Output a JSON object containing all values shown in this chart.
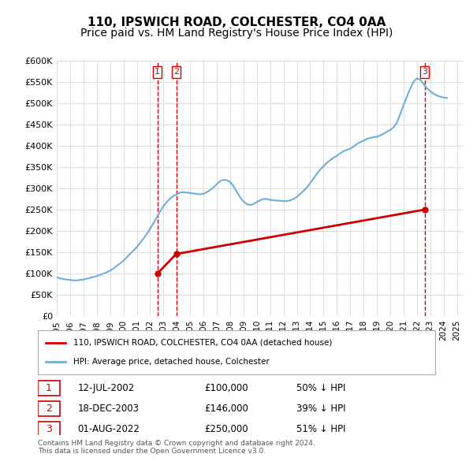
{
  "title": "110, IPSWICH ROAD, COLCHESTER, CO4 0AA",
  "subtitle": "Price paid vs. HM Land Registry's House Price Index (HPI)",
  "title_fontsize": 11,
  "subtitle_fontsize": 10,
  "hpi_color": "#6dafd7",
  "price_color": "#cc0000",
  "vline_color": "#cc0000",
  "ylabel_values": [
    "£0",
    "£50K",
    "£100K",
    "£150K",
    "£200K",
    "£250K",
    "£300K",
    "£350K",
    "£400K",
    "£450K",
    "£500K",
    "£550K",
    "£600K"
  ],
  "ylim": [
    0,
    600000
  ],
  "xlim": [
    1995.0,
    2025.5
  ],
  "hpi_years": [
    1995.0,
    1995.25,
    1995.5,
    1995.75,
    1996.0,
    1996.25,
    1996.5,
    1996.75,
    1997.0,
    1997.25,
    1997.5,
    1997.75,
    1998.0,
    1998.25,
    1998.5,
    1998.75,
    1999.0,
    1999.25,
    1999.5,
    1999.75,
    2000.0,
    2000.25,
    2000.5,
    2000.75,
    2001.0,
    2001.25,
    2001.5,
    2001.75,
    2002.0,
    2002.25,
    2002.5,
    2002.75,
    2003.0,
    2003.25,
    2003.5,
    2003.75,
    2004.0,
    2004.25,
    2004.5,
    2004.75,
    2005.0,
    2005.25,
    2005.5,
    2005.75,
    2006.0,
    2006.25,
    2006.5,
    2006.75,
    2007.0,
    2007.25,
    2007.5,
    2007.75,
    2008.0,
    2008.25,
    2008.5,
    2008.75,
    2009.0,
    2009.25,
    2009.5,
    2009.75,
    2010.0,
    2010.25,
    2010.5,
    2010.75,
    2011.0,
    2011.25,
    2011.5,
    2011.75,
    2012.0,
    2012.25,
    2012.5,
    2012.75,
    2013.0,
    2013.25,
    2013.5,
    2013.75,
    2014.0,
    2014.25,
    2014.5,
    2014.75,
    2015.0,
    2015.25,
    2015.5,
    2015.75,
    2016.0,
    2016.25,
    2016.5,
    2016.75,
    2017.0,
    2017.25,
    2017.5,
    2017.75,
    2018.0,
    2018.25,
    2018.5,
    2018.75,
    2019.0,
    2019.25,
    2019.5,
    2019.75,
    2020.0,
    2020.25,
    2020.5,
    2020.75,
    2021.0,
    2021.25,
    2021.5,
    2021.75,
    2022.0,
    2022.25,
    2022.5,
    2022.75,
    2023.0,
    2023.25,
    2023.5,
    2023.75,
    2024.0,
    2024.25
  ],
  "hpi_values": [
    91000,
    89000,
    87000,
    86000,
    85000,
    84000,
    84000,
    85000,
    86000,
    88000,
    90000,
    92000,
    94000,
    97000,
    100000,
    103000,
    107000,
    112000,
    118000,
    124000,
    130000,
    138000,
    146000,
    154000,
    162000,
    172000,
    182000,
    193000,
    205000,
    218000,
    232000,
    246000,
    258000,
    268000,
    276000,
    282000,
    286000,
    290000,
    291000,
    290000,
    289000,
    288000,
    287000,
    286000,
    287000,
    291000,
    296000,
    302000,
    310000,
    317000,
    320000,
    319000,
    315000,
    305000,
    292000,
    279000,
    269000,
    263000,
    261000,
    263000,
    268000,
    272000,
    275000,
    275000,
    273000,
    272000,
    271000,
    271000,
    270000,
    270000,
    272000,
    275000,
    280000,
    287000,
    294000,
    302000,
    312000,
    323000,
    334000,
    344000,
    352000,
    360000,
    366000,
    372000,
    376000,
    382000,
    387000,
    390000,
    393000,
    398000,
    404000,
    408000,
    412000,
    416000,
    418000,
    420000,
    421000,
    424000,
    428000,
    433000,
    437000,
    443000,
    454000,
    474000,
    495000,
    515000,
    534000,
    550000,
    558000,
    555000,
    545000,
    535000,
    528000,
    522000,
    518000,
    515000,
    513000,
    512000
  ],
  "sale_years": [
    2002.54,
    2003.96,
    2022.58
  ],
  "sale_prices": [
    100000,
    146000,
    250000
  ],
  "sale_labels": [
    "1",
    "2",
    "3"
  ],
  "sale_dates": [
    "12-JUL-2002",
    "18-DEC-2003",
    "01-AUG-2022"
  ],
  "sale_price_labels": [
    "£100,000",
    "£146,000",
    "£250,000"
  ],
  "sale_hpi_diff": [
    "50% ↓ HPI",
    "39% ↓ HPI",
    "51% ↓ HPI"
  ],
  "legend_label_red": "110, IPSWICH ROAD, COLCHESTER, CO4 0AA (detached house)",
  "legend_label_blue": "HPI: Average price, detached house, Colchester",
  "footer": "Contains HM Land Registry data © Crown copyright and database right 2024.\nThis data is licensed under the Open Government Licence v3.0.",
  "xticks": [
    1995,
    1996,
    1997,
    1998,
    1999,
    2000,
    2001,
    2002,
    2003,
    2004,
    2005,
    2006,
    2007,
    2008,
    2009,
    2010,
    2011,
    2012,
    2013,
    2014,
    2015,
    2016,
    2017,
    2018,
    2019,
    2020,
    2021,
    2022,
    2023,
    2024,
    2025
  ],
  "background_color": "#ffffff",
  "grid_color": "#dddddd"
}
